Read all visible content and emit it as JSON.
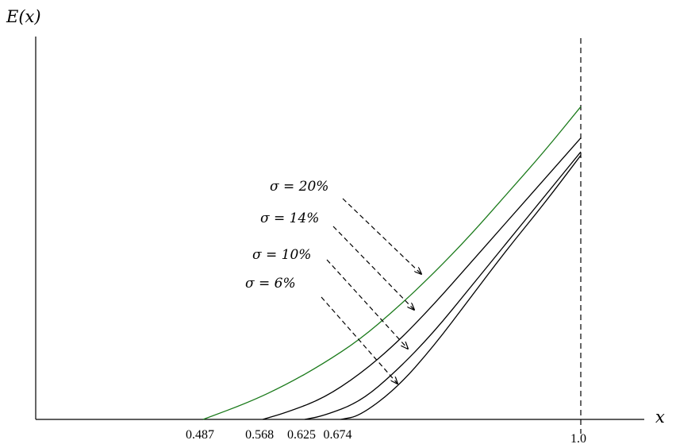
{
  "chart_data": {
    "type": "line",
    "title": "",
    "xlabel": "x",
    "ylabel": "E(x)",
    "xlim": [
      0.2,
      1.15
    ],
    "ylim": [
      0,
      1
    ],
    "grid": false,
    "x_ticks": [
      {
        "value": 0.487,
        "label": "0.487"
      },
      {
        "value": 0.568,
        "label": "0.568"
      },
      {
        "value": 0.625,
        "label": "0.625"
      },
      {
        "value": 0.674,
        "label": "0.674"
      },
      {
        "value": 1.0,
        "label": "1.0"
      }
    ],
    "reference_line": {
      "x": 1.0,
      "style": "dashed"
    },
    "series": [
      {
        "name": "σ = 20%",
        "color": "#1a7a1a",
        "start": 0.487,
        "x": [
          0.487,
          0.55,
          0.6,
          0.65,
          0.7,
          0.75,
          0.8,
          0.85,
          0.9,
          0.95,
          1.0
        ],
        "y": [
          0.0,
          0.05,
          0.1,
          0.16,
          0.23,
          0.32,
          0.42,
          0.53,
          0.65,
          0.77,
          0.9
        ]
      },
      {
        "name": "σ = 14%",
        "color": "#000000",
        "start": 0.568,
        "x": [
          0.568,
          0.6,
          0.65,
          0.7,
          0.75,
          0.8,
          0.85,
          0.9,
          0.95,
          1.0
        ],
        "y": [
          0.0,
          0.02,
          0.06,
          0.13,
          0.22,
          0.33,
          0.45,
          0.57,
          0.69,
          0.81
        ]
      },
      {
        "name": "σ = 10%",
        "color": "#000000",
        "start": 0.625,
        "x": [
          0.625,
          0.65,
          0.7,
          0.75,
          0.8,
          0.85,
          0.9,
          0.95,
          1.0
        ],
        "y": [
          0.0,
          0.01,
          0.05,
          0.14,
          0.25,
          0.38,
          0.51,
          0.64,
          0.77
        ]
      },
      {
        "name": "σ = 6%",
        "color": "#000000",
        "start": 0.674,
        "x": [
          0.674,
          0.7,
          0.75,
          0.8,
          0.85,
          0.9,
          0.95,
          1.0
        ],
        "y": [
          0.0,
          0.01,
          0.09,
          0.21,
          0.35,
          0.49,
          0.62,
          0.76
        ]
      }
    ],
    "annotations": [
      {
        "text": "σ = 20%",
        "series": 0
      },
      {
        "text": "σ = 14%",
        "series": 1
      },
      {
        "text": "σ = 10%",
        "series": 2
      },
      {
        "text": "σ = 6%",
        "series": 3
      }
    ]
  }
}
